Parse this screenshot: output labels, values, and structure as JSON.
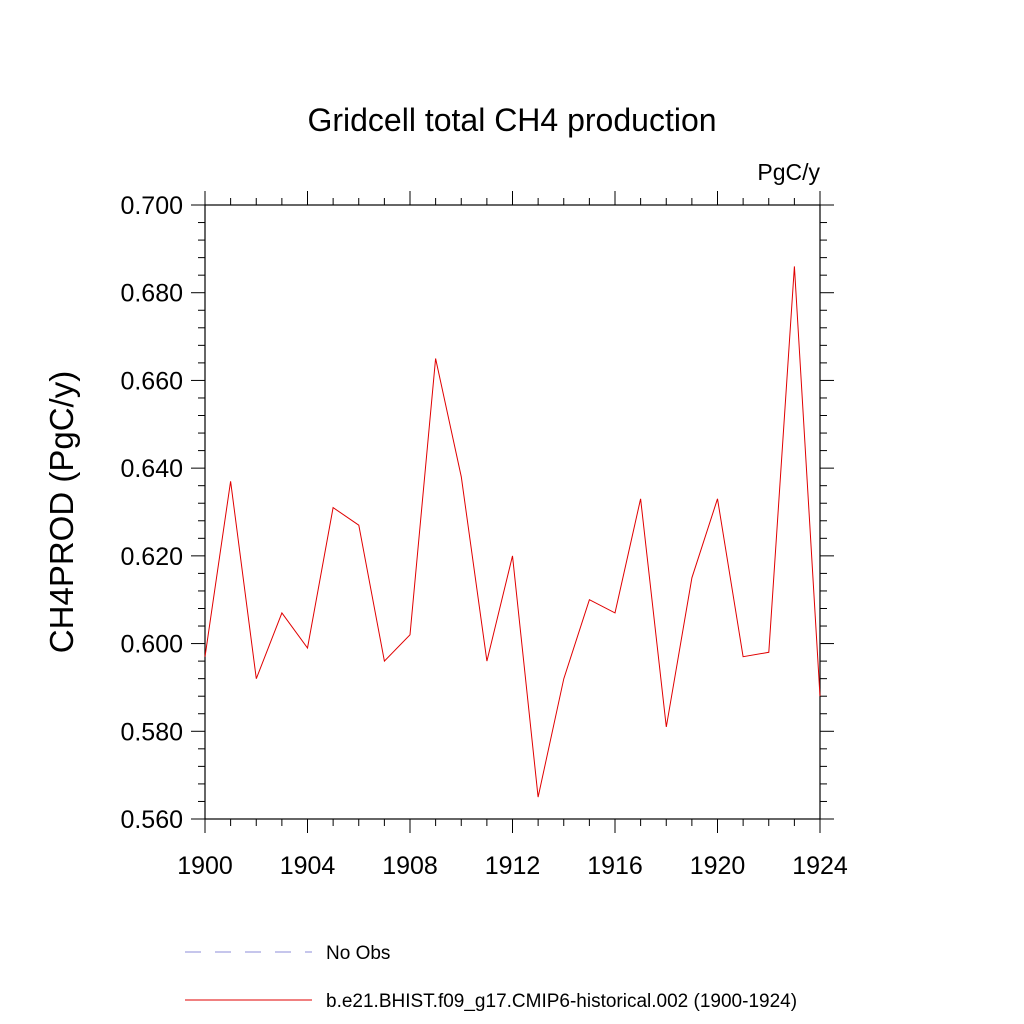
{
  "chart_data": {
    "type": "line",
    "title": "Gridcell total CH4 production",
    "units_label": "PgC/y",
    "ylabel": "CH4PROD  (PgC/y)",
    "xlabel": "",
    "xlim": [
      1900,
      1924
    ],
    "ylim": [
      0.56,
      0.7
    ],
    "x_ticks": [
      "1900",
      "1904",
      "1908",
      "1912",
      "1916",
      "1920",
      "1924"
    ],
    "y_ticks": [
      "0.560",
      "0.580",
      "0.600",
      "0.620",
      "0.640",
      "0.660",
      "0.680",
      "0.700"
    ],
    "grid": false,
    "legend_position": "bottom",
    "series": [
      {
        "name": "b.e21.BHIST.f09_g17.CMIP6-historical.002 (1900-1924)",
        "color": "#e00000",
        "style": "solid",
        "x": [
          1900,
          1901,
          1902,
          1903,
          1904,
          1905,
          1906,
          1907,
          1908,
          1909,
          1910,
          1911,
          1912,
          1913,
          1914,
          1915,
          1916,
          1917,
          1918,
          1919,
          1920,
          1921,
          1922,
          1923,
          1924
        ],
        "y": [
          0.597,
          0.637,
          0.592,
          0.607,
          0.599,
          0.631,
          0.627,
          0.596,
          0.602,
          0.665,
          0.638,
          0.596,
          0.62,
          0.565,
          0.592,
          0.61,
          0.607,
          0.633,
          0.581,
          0.615,
          0.633,
          0.597,
          0.598,
          0.686,
          0.588
        ]
      }
    ],
    "legend": [
      {
        "label": "No Obs",
        "color": "#8c8cd9",
        "style": "dashed"
      },
      {
        "label": "b.e21.BHIST.f09_g17.CMIP6-historical.002 (1900-1924)",
        "color": "#e00000",
        "style": "solid"
      }
    ]
  }
}
